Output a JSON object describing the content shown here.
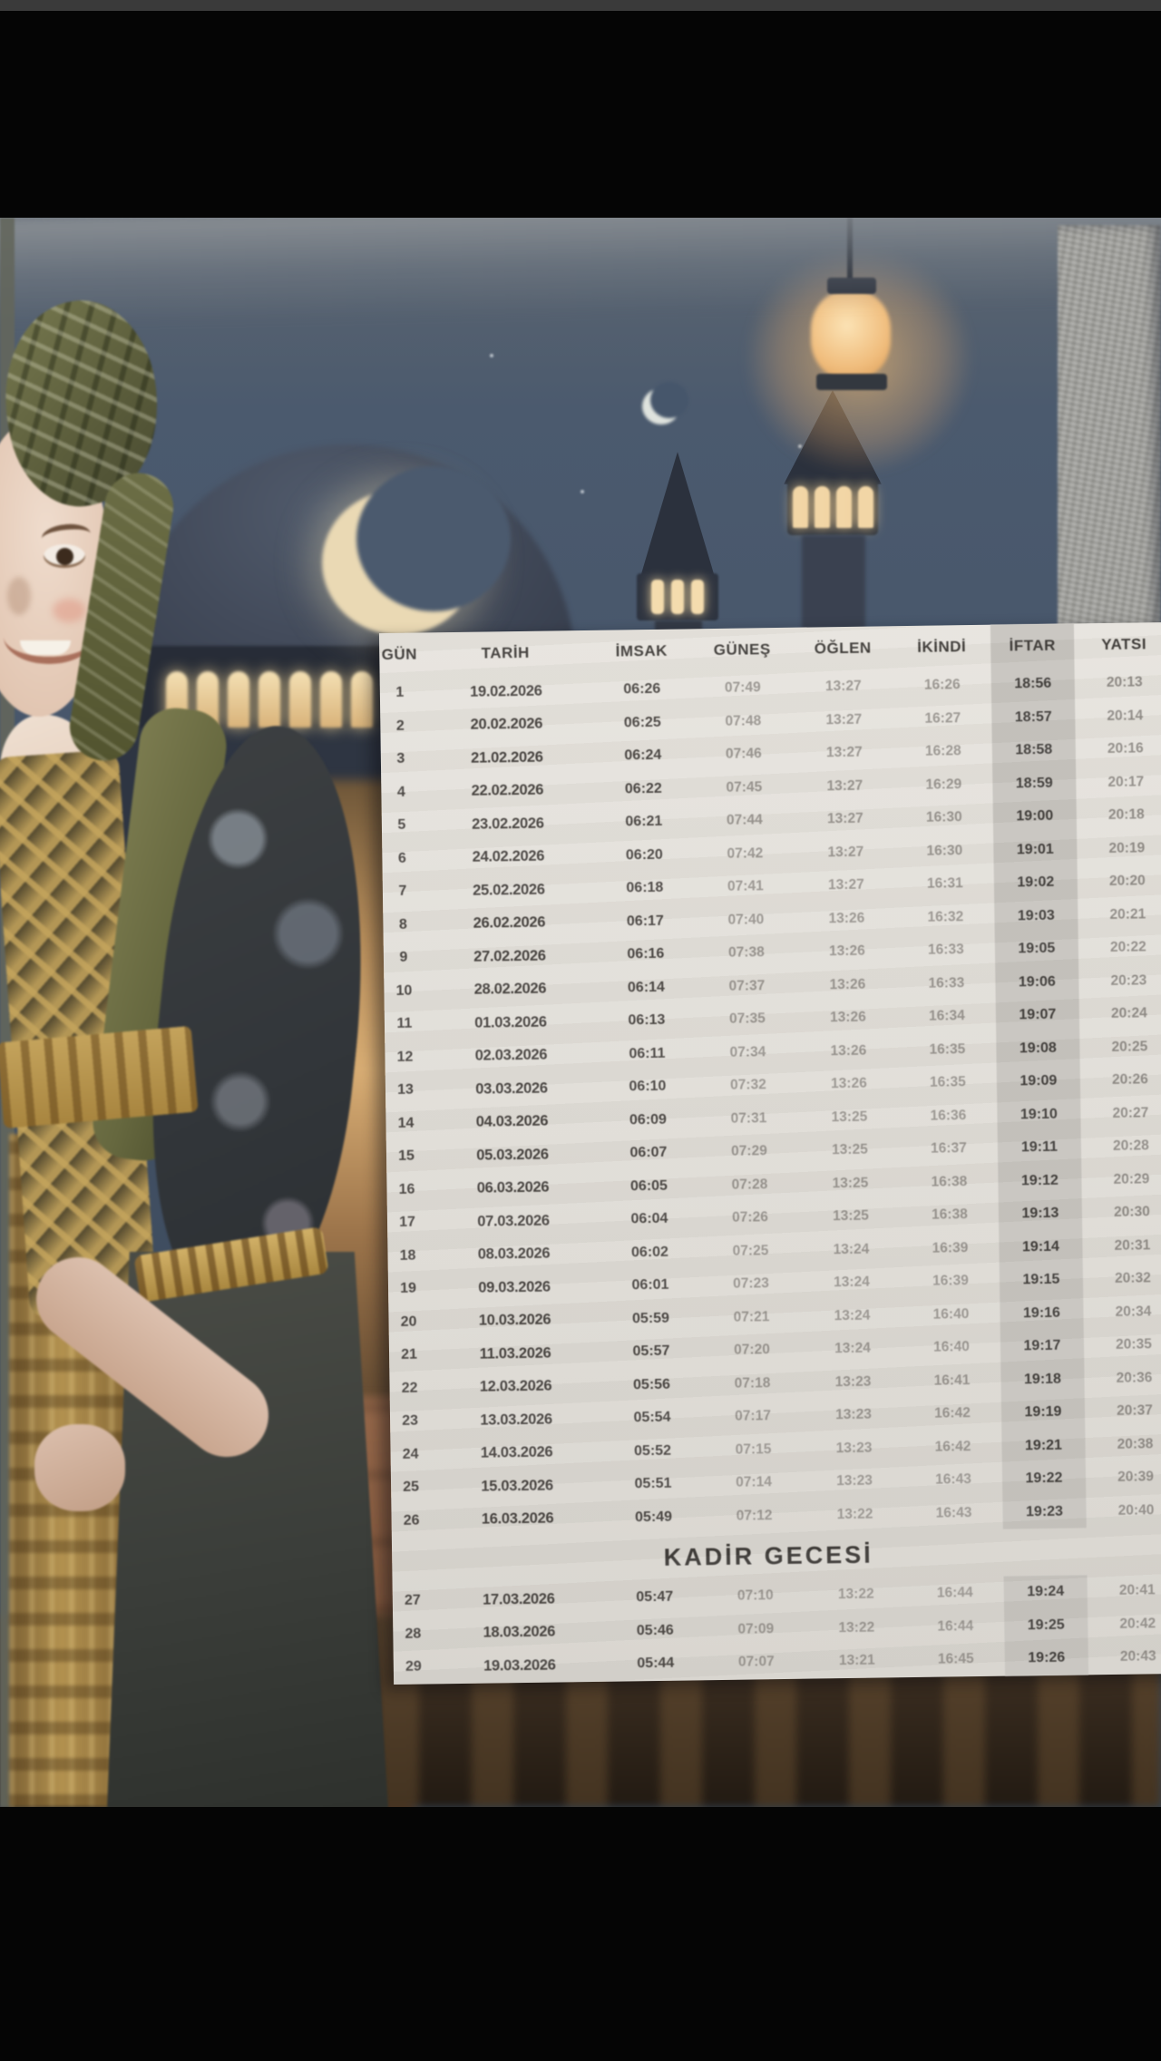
{
  "table": {
    "columns": [
      "GÜN",
      "TARİH",
      "İMSAK",
      "GÜNEŞ",
      "ÖĞLEN",
      "İKİNDİ",
      "İFTAR",
      "YATSI"
    ],
    "kadir_banner": {
      "label": "KADİR GECESİ",
      "before_day": "27",
      "before_row_index": 26
    },
    "rows": [
      {
        "day": "1",
        "date": "19.02.2026",
        "imsak": "06:26",
        "gunes": "07:49",
        "oglen": "13:27",
        "ikindi": "16:26",
        "iftar": "18:56",
        "yatsi": "20:13"
      },
      {
        "day": "2",
        "date": "20.02.2026",
        "imsak": "06:25",
        "gunes": "07:48",
        "oglen": "13:27",
        "ikindi": "16:27",
        "iftar": "18:57",
        "yatsi": "20:14"
      },
      {
        "day": "3",
        "date": "21.02.2026",
        "imsak": "06:24",
        "gunes": "07:46",
        "oglen": "13:27",
        "ikindi": "16:28",
        "iftar": "18:58",
        "yatsi": "20:16"
      },
      {
        "day": "4",
        "date": "22.02.2026",
        "imsak": "06:22",
        "gunes": "07:45",
        "oglen": "13:27",
        "ikindi": "16:29",
        "iftar": "18:59",
        "yatsi": "20:17"
      },
      {
        "day": "5",
        "date": "23.02.2026",
        "imsak": "06:21",
        "gunes": "07:44",
        "oglen": "13:27",
        "ikindi": "16:30",
        "iftar": "19:00",
        "yatsi": "20:18"
      },
      {
        "day": "6",
        "date": "24.02.2026",
        "imsak": "06:20",
        "gunes": "07:42",
        "oglen": "13:27",
        "ikindi": "16:30",
        "iftar": "19:01",
        "yatsi": "20:19"
      },
      {
        "day": "7",
        "date": "25.02.2026",
        "imsak": "06:18",
        "gunes": "07:41",
        "oglen": "13:27",
        "ikindi": "16:31",
        "iftar": "19:02",
        "yatsi": "20:20"
      },
      {
        "day": "8",
        "date": "26.02.2026",
        "imsak": "06:17",
        "gunes": "07:40",
        "oglen": "13:26",
        "ikindi": "16:32",
        "iftar": "19:03",
        "yatsi": "20:21"
      },
      {
        "day": "9",
        "date": "27.02.2026",
        "imsak": "06:16",
        "gunes": "07:38",
        "oglen": "13:26",
        "ikindi": "16:33",
        "iftar": "19:05",
        "yatsi": "20:22"
      },
      {
        "day": "10",
        "date": "28.02.2026",
        "imsak": "06:14",
        "gunes": "07:37",
        "oglen": "13:26",
        "ikindi": "16:33",
        "iftar": "19:06",
        "yatsi": "20:23"
      },
      {
        "day": "11",
        "date": "01.03.2026",
        "imsak": "06:13",
        "gunes": "07:35",
        "oglen": "13:26",
        "ikindi": "16:34",
        "iftar": "19:07",
        "yatsi": "20:24"
      },
      {
        "day": "12",
        "date": "02.03.2026",
        "imsak": "06:11",
        "gunes": "07:34",
        "oglen": "13:26",
        "ikindi": "16:35",
        "iftar": "19:08",
        "yatsi": "20:25"
      },
      {
        "day": "13",
        "date": "03.03.2026",
        "imsak": "06:10",
        "gunes": "07:32",
        "oglen": "13:26",
        "ikindi": "16:35",
        "iftar": "19:09",
        "yatsi": "20:26"
      },
      {
        "day": "14",
        "date": "04.03.2026",
        "imsak": "06:09",
        "gunes": "07:31",
        "oglen": "13:25",
        "ikindi": "16:36",
        "iftar": "19:10",
        "yatsi": "20:27"
      },
      {
        "day": "15",
        "date": "05.03.2026",
        "imsak": "06:07",
        "gunes": "07:29",
        "oglen": "13:25",
        "ikindi": "16:37",
        "iftar": "19:11",
        "yatsi": "20:28"
      },
      {
        "day": "16",
        "date": "06.03.2026",
        "imsak": "06:05",
        "gunes": "07:28",
        "oglen": "13:25",
        "ikindi": "16:38",
        "iftar": "19:12",
        "yatsi": "20:29"
      },
      {
        "day": "17",
        "date": "07.03.2026",
        "imsak": "06:04",
        "gunes": "07:26",
        "oglen": "13:25",
        "ikindi": "16:38",
        "iftar": "19:13",
        "yatsi": "20:30"
      },
      {
        "day": "18",
        "date": "08.03.2026",
        "imsak": "06:02",
        "gunes": "07:25",
        "oglen": "13:24",
        "ikindi": "16:39",
        "iftar": "19:14",
        "yatsi": "20:31"
      },
      {
        "day": "19",
        "date": "09.03.2026",
        "imsak": "06:01",
        "gunes": "07:23",
        "oglen": "13:24",
        "ikindi": "16:39",
        "iftar": "19:15",
        "yatsi": "20:32"
      },
      {
        "day": "20",
        "date": "10.03.2026",
        "imsak": "05:59",
        "gunes": "07:21",
        "oglen": "13:24",
        "ikindi": "16:40",
        "iftar": "19:16",
        "yatsi": "20:34"
      },
      {
        "day": "21",
        "date": "11.03.2026",
        "imsak": "05:57",
        "gunes": "07:20",
        "oglen": "13:24",
        "ikindi": "16:40",
        "iftar": "19:17",
        "yatsi": "20:35"
      },
      {
        "day": "22",
        "date": "12.03.2026",
        "imsak": "05:56",
        "gunes": "07:18",
        "oglen": "13:23",
        "ikindi": "16:41",
        "iftar": "19:18",
        "yatsi": "20:36"
      },
      {
        "day": "23",
        "date": "13.03.2026",
        "imsak": "05:54",
        "gunes": "07:17",
        "oglen": "13:23",
        "ikindi": "16:42",
        "iftar": "19:19",
        "yatsi": "20:37"
      },
      {
        "day": "24",
        "date": "14.03.2026",
        "imsak": "05:52",
        "gunes": "07:15",
        "oglen": "13:23",
        "ikindi": "16:42",
        "iftar": "19:21",
        "yatsi": "20:38"
      },
      {
        "day": "25",
        "date": "15.03.2026",
        "imsak": "05:51",
        "gunes": "07:14",
        "oglen": "13:23",
        "ikindi": "16:43",
        "iftar": "19:22",
        "yatsi": "20:39"
      },
      {
        "day": "26",
        "date": "16.03.2026",
        "imsak": "05:49",
        "gunes": "07:12",
        "oglen": "13:22",
        "ikindi": "16:43",
        "iftar": "19:23",
        "yatsi": "20:40"
      },
      {
        "day": "27",
        "date": "17.03.2026",
        "imsak": "05:47",
        "gunes": "07:10",
        "oglen": "13:22",
        "ikindi": "16:44",
        "iftar": "19:24",
        "yatsi": "20:41"
      },
      {
        "day": "28",
        "date": "18.03.2026",
        "imsak": "05:46",
        "gunes": "07:09",
        "oglen": "13:22",
        "ikindi": "16:44",
        "iftar": "19:25",
        "yatsi": "20:42"
      },
      {
        "day": "29",
        "date": "19.03.2026",
        "imsak": "05:44",
        "gunes": "07:07",
        "oglen": "13:21",
        "ikindi": "16:45",
        "iftar": "19:26",
        "yatsi": "20:43"
      }
    ]
  },
  "scene": {
    "description": "video frame of a Ramadan 2026 prayer-times wall calendar",
    "elements": [
      "crescent-moon",
      "small-crescent-moon",
      "mosque-dome",
      "dome-gallery-windows",
      "minaret",
      "lantern",
      "stone-wall",
      "child-in-traditional-dress"
    ],
    "colors": {
      "letterbox": "#050505",
      "sky": "#46556a",
      "paper": "#e3e0da",
      "iftar_highlight_band": "#c7c4bf",
      "dark_text": "#474340",
      "faded_text": "#98948f",
      "lantern_glow": "#f2c289",
      "moon": "#ead9b4",
      "turban_olive": "#6c6e46",
      "gold_trim": "#b2914f"
    }
  }
}
